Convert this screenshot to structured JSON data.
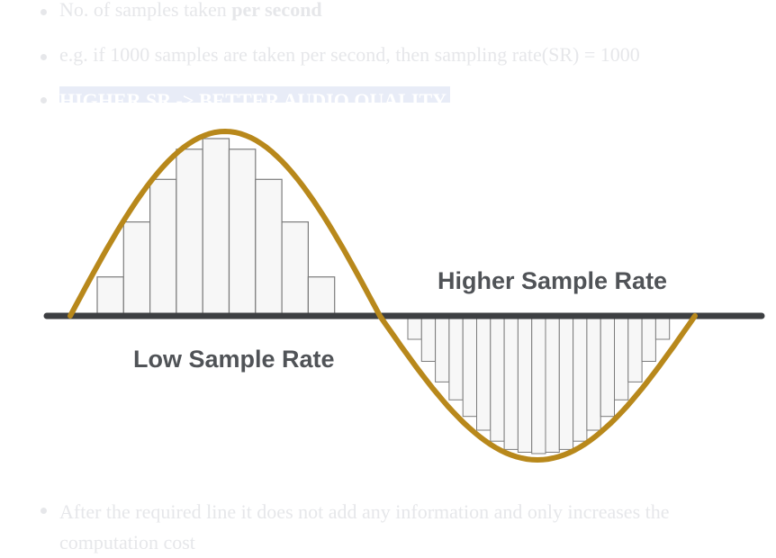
{
  "bullets": {
    "b1": {
      "prefix": "No. of samples taken ",
      "bold": "per second"
    },
    "b2": {
      "text": "e.g. if 1000 samples are taken per second, then sampling rate(SR) = 1000"
    },
    "b3": {
      "highlight": "HIGHER SR -> BETTER AUDIO QUALITY"
    },
    "b4": {
      "text": "After the required line it does not add any information and only increases the computation cost"
    }
  },
  "diagram": {
    "low_label": "Low Sample Rate",
    "high_label": "Higher Sample Rate",
    "low_rate_samples": [
      0.22,
      0.53,
      0.77,
      0.94,
      1.0,
      0.94,
      0.77,
      0.53,
      0.22
    ],
    "high_rate_samples": [
      0.17,
      0.33,
      0.48,
      0.61,
      0.73,
      0.83,
      0.91,
      0.97,
      0.99,
      1.0,
      0.99,
      0.97,
      0.91,
      0.83,
      0.73,
      0.61,
      0.48,
      0.33,
      0.17
    ],
    "colors": {
      "wave": "#b8881b",
      "axis": "#3d3f42",
      "bar_fill": "#f7f7f7",
      "bar_stroke": "#7c7c7c",
      "label": "#505357",
      "faded_text": "#e6e7ea",
      "highlight": "#e8ecf7"
    }
  }
}
